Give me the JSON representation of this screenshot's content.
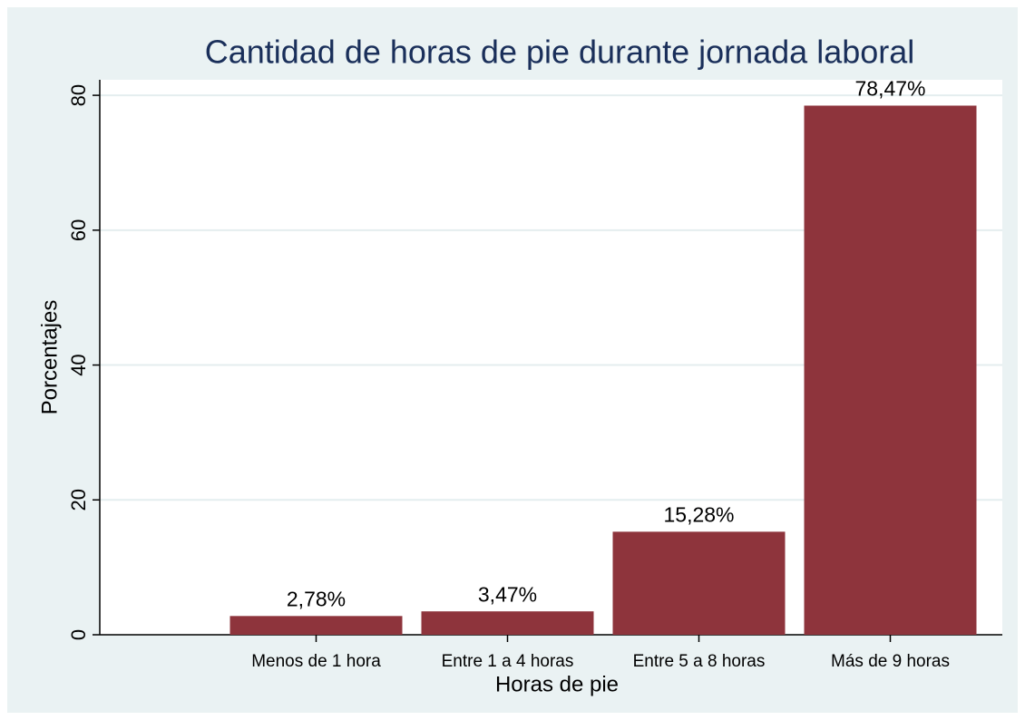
{
  "chart_data": {
    "type": "bar",
    "title": "Cantidad de horas de pie durante jornada laboral",
    "x_label": "Horas de pie",
    "y_label": "Porcentajes",
    "categories": [
      "Menos de 1 hora",
      "Entre 1 a 4 horas",
      "Entre 5 a 8 horas",
      "Más de 9 horas"
    ],
    "values": [
      2.78,
      3.47,
      15.28,
      78.47
    ],
    "value_labels": [
      "2,78%",
      "3,47%",
      "15,28%",
      "78,47%"
    ],
    "color": "#8e343c",
    "ylim": [
      0,
      82.3
    ],
    "yticks": [
      0,
      20,
      40,
      60,
      80
    ],
    "grid": true
  }
}
